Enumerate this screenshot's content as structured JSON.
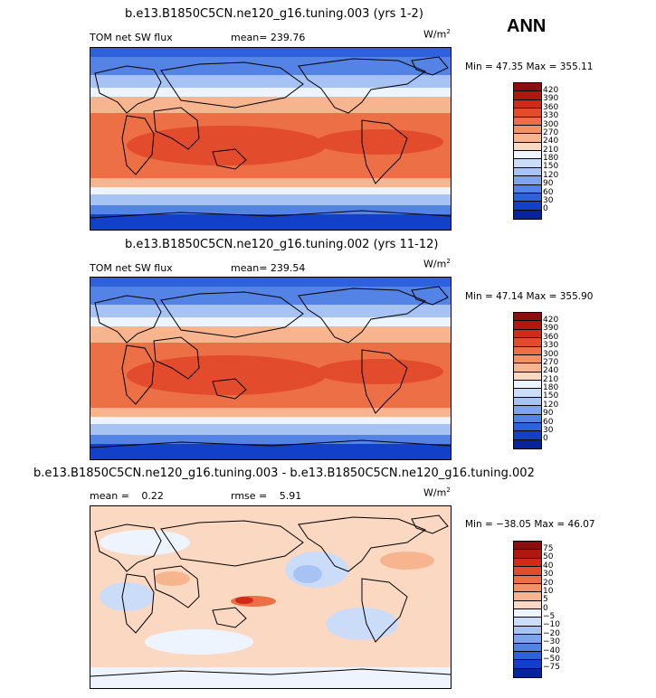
{
  "season": "ANN",
  "units_base": "W/m",
  "units_exp": "2",
  "panels": [
    {
      "title": "b.e13.B1850C5CN.ne120_g16.tuning.003 (yrs 1-2)",
      "variable": "TOM net SW flux",
      "stat1_label": "mean=",
      "stat1_value": "239.76",
      "min_label": "Min =",
      "min_value": "47.35",
      "max_label": "Max =",
      "max_value": "355.11",
      "levels": [
        "420",
        "390",
        "360",
        "330",
        "300",
        "270",
        "240",
        "210",
        "180",
        "150",
        "120",
        "90",
        "60",
        "30",
        "0"
      ],
      "colors": [
        "#8b0d0d",
        "#b0170f",
        "#cf2b18",
        "#e24b2c",
        "#ec6f45",
        "#f39166",
        "#f7b58f",
        "#fbd8c2",
        "#eef4fd",
        "#cbdcf8",
        "#a7c3f3",
        "#7ea4ee",
        "#5483e6",
        "#2d62dc",
        "#1240c9",
        "#07249a"
      ]
    },
    {
      "title": "b.e13.B1850C5CN.ne120_g16.tuning.002 (yrs 11-12)",
      "variable": "TOM net SW flux",
      "stat1_label": "mean=",
      "stat1_value": "239.54",
      "min_label": "Min =",
      "min_value": "47.14",
      "max_label": "Max =",
      "max_value": "355.90",
      "levels": [
        "420",
        "390",
        "360",
        "330",
        "300",
        "270",
        "240",
        "210",
        "180",
        "150",
        "120",
        "90",
        "60",
        "30",
        "0"
      ],
      "colors": [
        "#8b0d0d",
        "#b0170f",
        "#cf2b18",
        "#e24b2c",
        "#ec6f45",
        "#f39166",
        "#f7b58f",
        "#fbd8c2",
        "#eef4fd",
        "#cbdcf8",
        "#a7c3f3",
        "#7ea4ee",
        "#5483e6",
        "#2d62dc",
        "#1240c9",
        "#07249a"
      ]
    },
    {
      "title": "b.e13.B1850C5CN.ne120_g16.tuning.003 - b.e13.B1850C5CN.ne120_g16.tuning.002",
      "stat1_label": "mean =",
      "stat1_value": "0.22",
      "stat2_label": "rmse =",
      "stat2_value": "5.91",
      "min_label": "Min =",
      "min_value": "−38.05",
      "max_label": "Max =",
      "max_value": "46.07",
      "levels": [
        "75",
        "50",
        "40",
        "30",
        "20",
        "10",
        "5",
        "0",
        "−5",
        "−10",
        "−20",
        "−30",
        "−40",
        "−50",
        "−75"
      ],
      "colors": [
        "#8b0d0d",
        "#b0170f",
        "#cf2b18",
        "#e24b2c",
        "#ec6f45",
        "#f39166",
        "#f7b58f",
        "#fbd8c2",
        "#eef4fd",
        "#cbdcf8",
        "#a7c3f3",
        "#7ea4ee",
        "#5483e6",
        "#2d62dc",
        "#1240c9",
        "#07249a"
      ]
    }
  ]
}
